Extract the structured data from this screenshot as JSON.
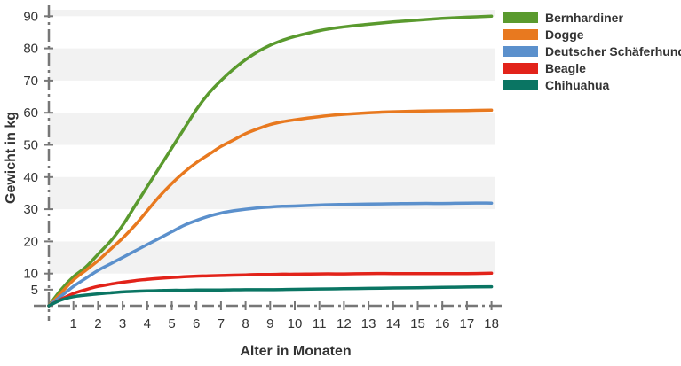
{
  "chart_data": {
    "type": "line",
    "xlabel": "Alter in Monaten",
    "ylabel": "Gewicht in kg",
    "x_ticks": [
      1,
      2,
      3,
      4,
      5,
      6,
      7,
      8,
      9,
      10,
      11,
      12,
      13,
      14,
      15,
      16,
      17,
      18
    ],
    "y_ticks": [
      5,
      10,
      20,
      30,
      40,
      50,
      60,
      70,
      80,
      90
    ],
    "xlim": [
      0,
      18.5
    ],
    "ylim": [
      0,
      92
    ],
    "grid": "horizontal bands",
    "legend_position": "top-right",
    "x": [
      0,
      0.5,
      1,
      1.5,
      2,
      2.5,
      3,
      3.5,
      4,
      4.5,
      5,
      5.5,
      6,
      6.5,
      7,
      7.5,
      8,
      8.5,
      9,
      9.5,
      10,
      11,
      12,
      13,
      14,
      15,
      16,
      17,
      18
    ],
    "series": [
      {
        "name": "Bernhardiner",
        "color": "#5a9a2e",
        "values": [
          0,
          5,
          9,
          12,
          16,
          20,
          25,
          31,
          37,
          43,
          49,
          55,
          61,
          66,
          70,
          73.5,
          76.5,
          79,
          81,
          82.5,
          83.7,
          85.5,
          86.7,
          87.5,
          88.2,
          88.8,
          89.3,
          89.7,
          90
        ]
      },
      {
        "name": "Dogge",
        "color": "#e8791f",
        "values": [
          0,
          4,
          8,
          11,
          14,
          17.5,
          21,
          25,
          29.5,
          34,
          38,
          41.5,
          44.5,
          47,
          49.5,
          51.5,
          53.5,
          55,
          56.3,
          57.2,
          57.8,
          58.8,
          59.5,
          60,
          60.3,
          60.5,
          60.6,
          60.7,
          60.8
        ]
      },
      {
        "name": "Deutscher Schäferhund",
        "color": "#5b90cc",
        "values": [
          0,
          3,
          6,
          8.5,
          11,
          13,
          15,
          17,
          19,
          21,
          23,
          25,
          26.5,
          27.8,
          28.8,
          29.5,
          30,
          30.4,
          30.7,
          30.9,
          31,
          31.3,
          31.5,
          31.6,
          31.7,
          31.8,
          31.8,
          31.9,
          31.9
        ]
      },
      {
        "name": "Beagle",
        "color": "#e2231a",
        "values": [
          0,
          2,
          3.8,
          5,
          6,
          6.7,
          7.3,
          7.8,
          8.2,
          8.5,
          8.8,
          9,
          9.2,
          9.3,
          9.4,
          9.5,
          9.6,
          9.7,
          9.7,
          9.8,
          9.8,
          9.9,
          9.9,
          10,
          10,
          10,
          10,
          10,
          10.1
        ]
      },
      {
        "name": "Chihuahua",
        "color": "#0a7563",
        "values": [
          0,
          1.8,
          2.8,
          3.3,
          3.7,
          4,
          4.3,
          4.5,
          4.6,
          4.7,
          4.8,
          4.8,
          4.9,
          4.9,
          4.9,
          4.95,
          5,
          5,
          5,
          5.05,
          5.1,
          5.2,
          5.3,
          5.4,
          5.5,
          5.6,
          5.7,
          5.8,
          5.9
        ]
      }
    ]
  }
}
